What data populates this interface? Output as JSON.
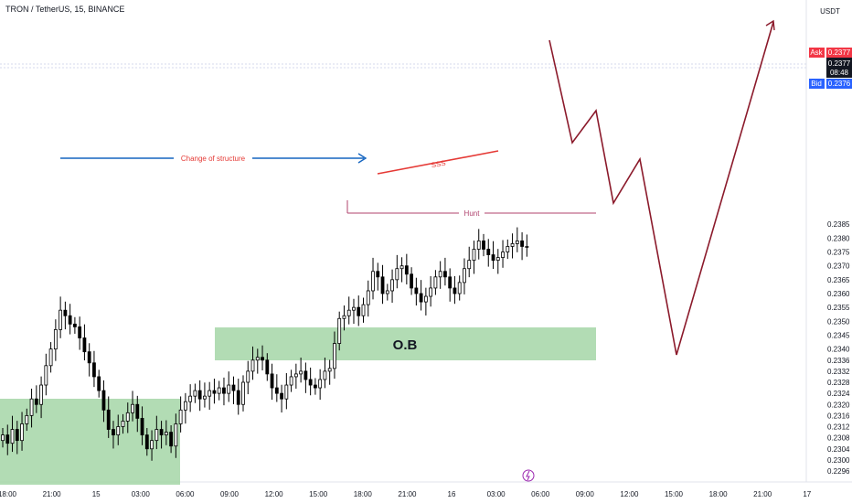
{
  "header": {
    "title": "TRON / TetherUS, 15, BINANCE"
  },
  "price_scale": {
    "currency": "USDT",
    "ask_label": "Ask",
    "ask_value": "0.2377",
    "timer": "08:48",
    "bid_label": "Bid",
    "bid_value": "0.2376",
    "ticks": [
      "0.2385",
      "0.2380",
      "0.2375",
      "0.2370",
      "0.2365",
      "0.2360",
      "0.2355",
      "0.2350",
      "0.2345",
      "0.2340",
      "0.2336",
      "0.2332",
      "0.2328",
      "0.2324",
      "0.2320",
      "0.2316",
      "0.2312",
      "0.2308",
      "0.2304",
      "0.2300",
      "0.2296"
    ]
  },
  "time_axis": {
    "ticks": [
      "18:00",
      "21:00",
      "15",
      "03:00",
      "06:00",
      "09:00",
      "12:00",
      "15:00",
      "18:00",
      "21:00",
      "16",
      "03:00",
      "06:00",
      "09:00",
      "12:00",
      "15:00",
      "18:00",
      "21:00",
      "17"
    ]
  },
  "annotations": {
    "change_of_structure": "Change of structure",
    "sss": "SSS",
    "hunt": "Hunt",
    "order_block": "O.B"
  },
  "colors": {
    "up": "#ffffff",
    "down": "#000000",
    "zone": "#a5d6a7",
    "structure": "#1565c0",
    "sss": "#e53935",
    "hunt": "#b0436e",
    "projection": "#8b1a2b",
    "ask": "#f23645",
    "bid": "#2962ff"
  },
  "chart_data": {
    "type": "candlestick",
    "title": "TRON / TetherUS, 15, BINANCE",
    "ylim": [
      0.2294,
      0.2388
    ],
    "close_series": [
      0.2309,
      0.2306,
      0.2311,
      0.2307,
      0.2313,
      0.2316,
      0.2322,
      0.232,
      0.2327,
      0.2334,
      0.234,
      0.2347,
      0.2354,
      0.2352,
      0.2349,
      0.2348,
      0.2344,
      0.2339,
      0.2335,
      0.233,
      0.2325,
      0.2318,
      0.2311,
      0.2309,
      0.2312,
      0.2314,
      0.2317,
      0.232,
      0.2315,
      0.2309,
      0.2304,
      0.2307,
      0.2311,
      0.2309,
      0.231,
      0.2305,
      0.2313,
      0.2318,
      0.2321,
      0.2323,
      0.2325,
      0.2322,
      0.2323,
      0.2325,
      0.2324,
      0.2326,
      0.2324,
      0.2327,
      0.2325,
      0.232,
      0.2328,
      0.2332,
      0.2336,
      0.2337,
      0.2336,
      0.2331,
      0.2326,
      0.2324,
      0.2322,
      0.2327,
      0.233,
      0.2331,
      0.2332,
      0.2329,
      0.2327,
      0.2326,
      0.2329,
      0.2332,
      0.2333,
      0.2342,
      0.2351,
      0.2352,
      0.2354,
      0.2355,
      0.2352,
      0.2356,
      0.2361,
      0.2368,
      0.2366,
      0.236,
      0.2361,
      0.2365,
      0.2369,
      0.237,
      0.2367,
      0.2362,
      0.236,
      0.2357,
      0.2359,
      0.2362,
      0.2366,
      0.2368,
      0.2366,
      0.2362,
      0.236,
      0.2364,
      0.2369,
      0.2372,
      0.2376,
      0.2379,
      0.2376,
      0.2374,
      0.2372,
      0.2373,
      0.2375,
      0.2377,
      0.2378,
      0.2379,
      0.2377,
      0.2377
    ]
  }
}
